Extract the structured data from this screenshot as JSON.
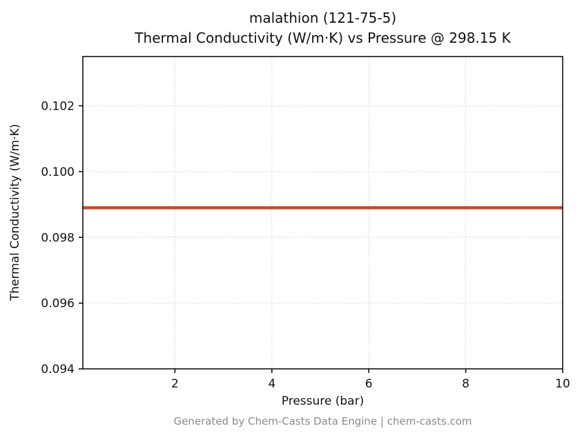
{
  "footer": "Generated by Chem-Casts Data Engine | chem-casts.com",
  "chart_data": {
    "type": "line",
    "title_line1": "malathion (121-75-5)",
    "title_line2": "Thermal Conductivity (W/m·K) vs Pressure @ 298.15 K",
    "xlabel": "Pressure (bar)",
    "ylabel": "Thermal Conductivity (W/m·K)",
    "xlim": [
      0.1,
      10
    ],
    "ylim": [
      0.094,
      0.1035
    ],
    "xticks": [
      2,
      4,
      6,
      8,
      10
    ],
    "xtick_labels": [
      "2",
      "4",
      "6",
      "8",
      "10"
    ],
    "yticks": [
      0.094,
      0.096,
      0.098,
      0.1,
      0.102
    ],
    "ytick_labels": [
      "0.094",
      "0.096",
      "0.098",
      "0.100",
      "0.102"
    ],
    "grid": true,
    "grid_color": "#cbcbcb",
    "legend_position": "none",
    "series": [
      {
        "name": "Thermal Conductivity",
        "x": [
          0.1,
          10
        ],
        "values": [
          0.0989,
          0.0989
        ],
        "color": "#c84a24",
        "line_width": 4.5
      }
    ]
  }
}
